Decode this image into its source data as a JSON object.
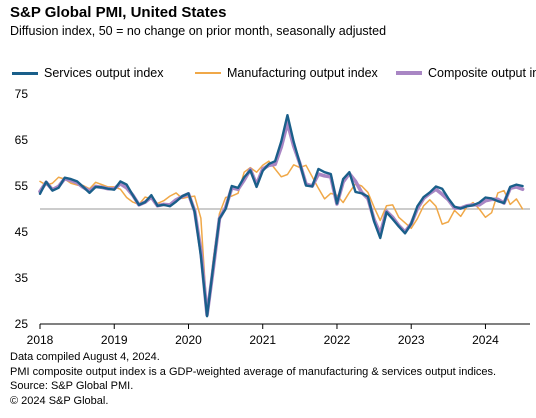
{
  "title": "S&P Global PMI, United States",
  "subtitle": "Diffusion index, 50 = no change on prior month, seasonally adjusted",
  "legend": [
    {
      "label": "Services output index",
      "color": "#1a5f8a"
    },
    {
      "label": "Manufacturing output index",
      "color": "#f0a848"
    },
    {
      "label": "Composite output index",
      "color": "#a986c4"
    }
  ],
  "footnotes": {
    "compiled": "Data compiled August 4, 2024.",
    "note": "PMI composite output index is a GDP-weighted average of manufacturing & services output indices.",
    "source": "Source: S&P Global PMI.",
    "copyright": "© 2024 S&P Global."
  },
  "chart_data": {
    "type": "line",
    "ylim": [
      25,
      75
    ],
    "yticks": [
      25,
      35,
      45,
      55,
      65,
      75
    ],
    "xlim": [
      2018.0,
      2024.6
    ],
    "xticks": [
      2018,
      2019,
      2020,
      2021,
      2022,
      2023,
      2024
    ],
    "xtick_labels": [
      "2018",
      "2019",
      "2020",
      "2021",
      "2022",
      "2023",
      "2024"
    ],
    "reference_line": 50,
    "series": [
      {
        "name": "Services output index",
        "color": "#1a5f8a",
        "x": [
          2018.0,
          2018.083,
          2018.167,
          2018.25,
          2018.333,
          2018.417,
          2018.5,
          2018.583,
          2018.667,
          2018.75,
          2018.833,
          2018.917,
          2019.0,
          2019.083,
          2019.167,
          2019.25,
          2019.333,
          2019.417,
          2019.5,
          2019.583,
          2019.667,
          2019.75,
          2019.833,
          2019.917,
          2020.0,
          2020.083,
          2020.167,
          2020.25,
          2020.333,
          2020.417,
          2020.5,
          2020.583,
          2020.667,
          2020.75,
          2020.833,
          2020.917,
          2021.0,
          2021.083,
          2021.167,
          2021.25,
          2021.333,
          2021.417,
          2021.5,
          2021.583,
          2021.667,
          2021.75,
          2021.833,
          2021.917,
          2022.0,
          2022.083,
          2022.167,
          2022.25,
          2022.333,
          2022.417,
          2022.5,
          2022.583,
          2022.667,
          2022.75,
          2022.833,
          2022.917,
          2023.0,
          2023.083,
          2023.167,
          2023.25,
          2023.333,
          2023.417,
          2023.5,
          2023.583,
          2023.667,
          2023.75,
          2023.833,
          2023.917,
          2024.0,
          2024.083,
          2024.167,
          2024.25,
          2024.333,
          2024.417,
          2024.5
        ],
        "values": [
          53.3,
          55.9,
          54.0,
          54.6,
          56.8,
          56.5,
          56.0,
          54.8,
          53.5,
          54.8,
          54.7,
          54.4,
          54.2,
          56.0,
          55.3,
          53.0,
          50.9,
          51.5,
          53.0,
          50.7,
          50.9,
          50.6,
          51.6,
          52.8,
          53.4,
          49.4,
          39.8,
          26.7,
          37.5,
          47.9,
          50.0,
          55.0,
          54.6,
          56.9,
          58.4,
          54.8,
          58.3,
          59.8,
          60.4,
          64.7,
          70.4,
          64.6,
          59.9,
          55.1,
          54.9,
          58.7,
          58.0,
          57.6,
          51.2,
          56.5,
          58.0,
          53.7,
          53.4,
          52.7,
          47.3,
          43.7,
          49.3,
          47.8,
          46.2,
          44.7,
          46.8,
          50.6,
          52.6,
          53.6,
          54.9,
          54.4,
          52.3,
          50.5,
          50.1,
          50.6,
          50.8,
          51.4,
          52.5,
          52.3,
          51.7,
          51.3,
          54.8,
          55.3,
          55.0
        ]
      },
      {
        "name": "Manufacturing output index",
        "color": "#f0a848",
        "x": [
          2018.0,
          2018.083,
          2018.167,
          2018.25,
          2018.333,
          2018.417,
          2018.5,
          2018.583,
          2018.667,
          2018.75,
          2018.833,
          2018.917,
          2019.0,
          2019.083,
          2019.167,
          2019.25,
          2019.333,
          2019.417,
          2019.5,
          2019.583,
          2019.667,
          2019.75,
          2019.833,
          2019.917,
          2020.0,
          2020.083,
          2020.167,
          2020.25,
          2020.333,
          2020.417,
          2020.5,
          2020.583,
          2020.667,
          2020.75,
          2020.833,
          2020.917,
          2021.0,
          2021.083,
          2021.167,
          2021.25,
          2021.333,
          2021.417,
          2021.5,
          2021.583,
          2021.667,
          2021.75,
          2021.833,
          2021.917,
          2022.0,
          2022.083,
          2022.167,
          2022.25,
          2022.333,
          2022.417,
          2022.5,
          2022.583,
          2022.667,
          2022.75,
          2022.833,
          2022.917,
          2023.0,
          2023.083,
          2023.167,
          2023.25,
          2023.333,
          2023.417,
          2023.5,
          2023.583,
          2023.667,
          2023.75,
          2023.833,
          2023.917,
          2024.0,
          2024.083,
          2024.167,
          2024.25,
          2024.333,
          2024.417,
          2024.5
        ],
        "values": [
          56.0,
          55.2,
          55.6,
          56.9,
          56.5,
          55.6,
          55.2,
          55.1,
          54.4,
          55.8,
          55.3,
          54.8,
          54.8,
          54.3,
          52.5,
          51.5,
          51.0,
          52.6,
          52.2,
          51.2,
          51.8,
          52.8,
          53.5,
          52.3,
          52.6,
          52.8,
          48.0,
          27.0,
          39.0,
          49.0,
          52.5,
          52.8,
          53.4,
          58.0,
          59.0,
          58.0,
          59.5,
          60.4,
          58.7,
          57.0,
          57.5,
          59.6,
          59.0,
          59.5,
          57.0,
          54.5,
          52.2,
          53.4,
          53.0,
          51.4,
          53.6,
          55.5,
          55.0,
          53.6,
          50.4,
          47.5,
          50.7,
          50.9,
          48.2,
          47.0,
          45.8,
          47.9,
          50.7,
          52.0,
          50.6,
          46.7,
          47.2,
          49.7,
          48.4,
          50.5,
          51.4,
          50.0,
          48.2,
          49.2,
          53.5,
          54.0,
          51.0,
          52.2,
          50.0
        ]
      },
      {
        "name": "Composite output index",
        "color": "#a986c4",
        "x": [
          2018.0,
          2018.083,
          2018.167,
          2018.25,
          2018.333,
          2018.417,
          2018.5,
          2018.583,
          2018.667,
          2018.75,
          2018.833,
          2018.917,
          2019.0,
          2019.083,
          2019.167,
          2019.25,
          2019.333,
          2019.417,
          2019.5,
          2019.583,
          2019.667,
          2019.75,
          2019.833,
          2019.917,
          2020.0,
          2020.083,
          2020.167,
          2020.25,
          2020.333,
          2020.417,
          2020.5,
          2020.583,
          2020.667,
          2020.75,
          2020.833,
          2020.917,
          2021.0,
          2021.083,
          2021.167,
          2021.25,
          2021.333,
          2021.417,
          2021.5,
          2021.583,
          2021.667,
          2021.75,
          2021.833,
          2021.917,
          2022.0,
          2022.083,
          2022.167,
          2022.25,
          2022.333,
          2022.417,
          2022.5,
          2022.583,
          2022.667,
          2022.75,
          2022.833,
          2022.917,
          2023.0,
          2023.083,
          2023.167,
          2023.25,
          2023.333,
          2023.417,
          2023.5,
          2023.583,
          2023.667,
          2023.75,
          2023.833,
          2023.917,
          2024.0,
          2024.083,
          2024.167,
          2024.25,
          2024.333,
          2024.417,
          2024.5
        ],
        "values": [
          53.8,
          55.8,
          54.2,
          54.9,
          56.6,
          56.2,
          55.7,
          54.7,
          53.9,
          54.9,
          54.7,
          54.4,
          54.4,
          55.5,
          54.6,
          53.0,
          50.9,
          51.5,
          52.6,
          50.7,
          51.0,
          50.9,
          52.0,
          52.7,
          53.3,
          49.6,
          40.9,
          27.0,
          37.0,
          47.9,
          50.3,
          54.6,
          54.3,
          56.3,
          58.6,
          55.3,
          58.7,
          59.5,
          59.7,
          63.5,
          68.7,
          63.7,
          59.9,
          55.4,
          55.0,
          57.6,
          57.2,
          57.0,
          51.1,
          55.9,
          57.7,
          56.0,
          53.6,
          52.3,
          47.7,
          44.6,
          49.5,
          48.2,
          46.4,
          45.0,
          46.8,
          50.1,
          52.3,
          53.4,
          54.3,
          53.2,
          52.0,
          50.2,
          50.2,
          50.7,
          50.9,
          50.9,
          51.8,
          52.1,
          52.1,
          51.3,
          54.5,
          54.8,
          54.3
        ]
      }
    ]
  }
}
